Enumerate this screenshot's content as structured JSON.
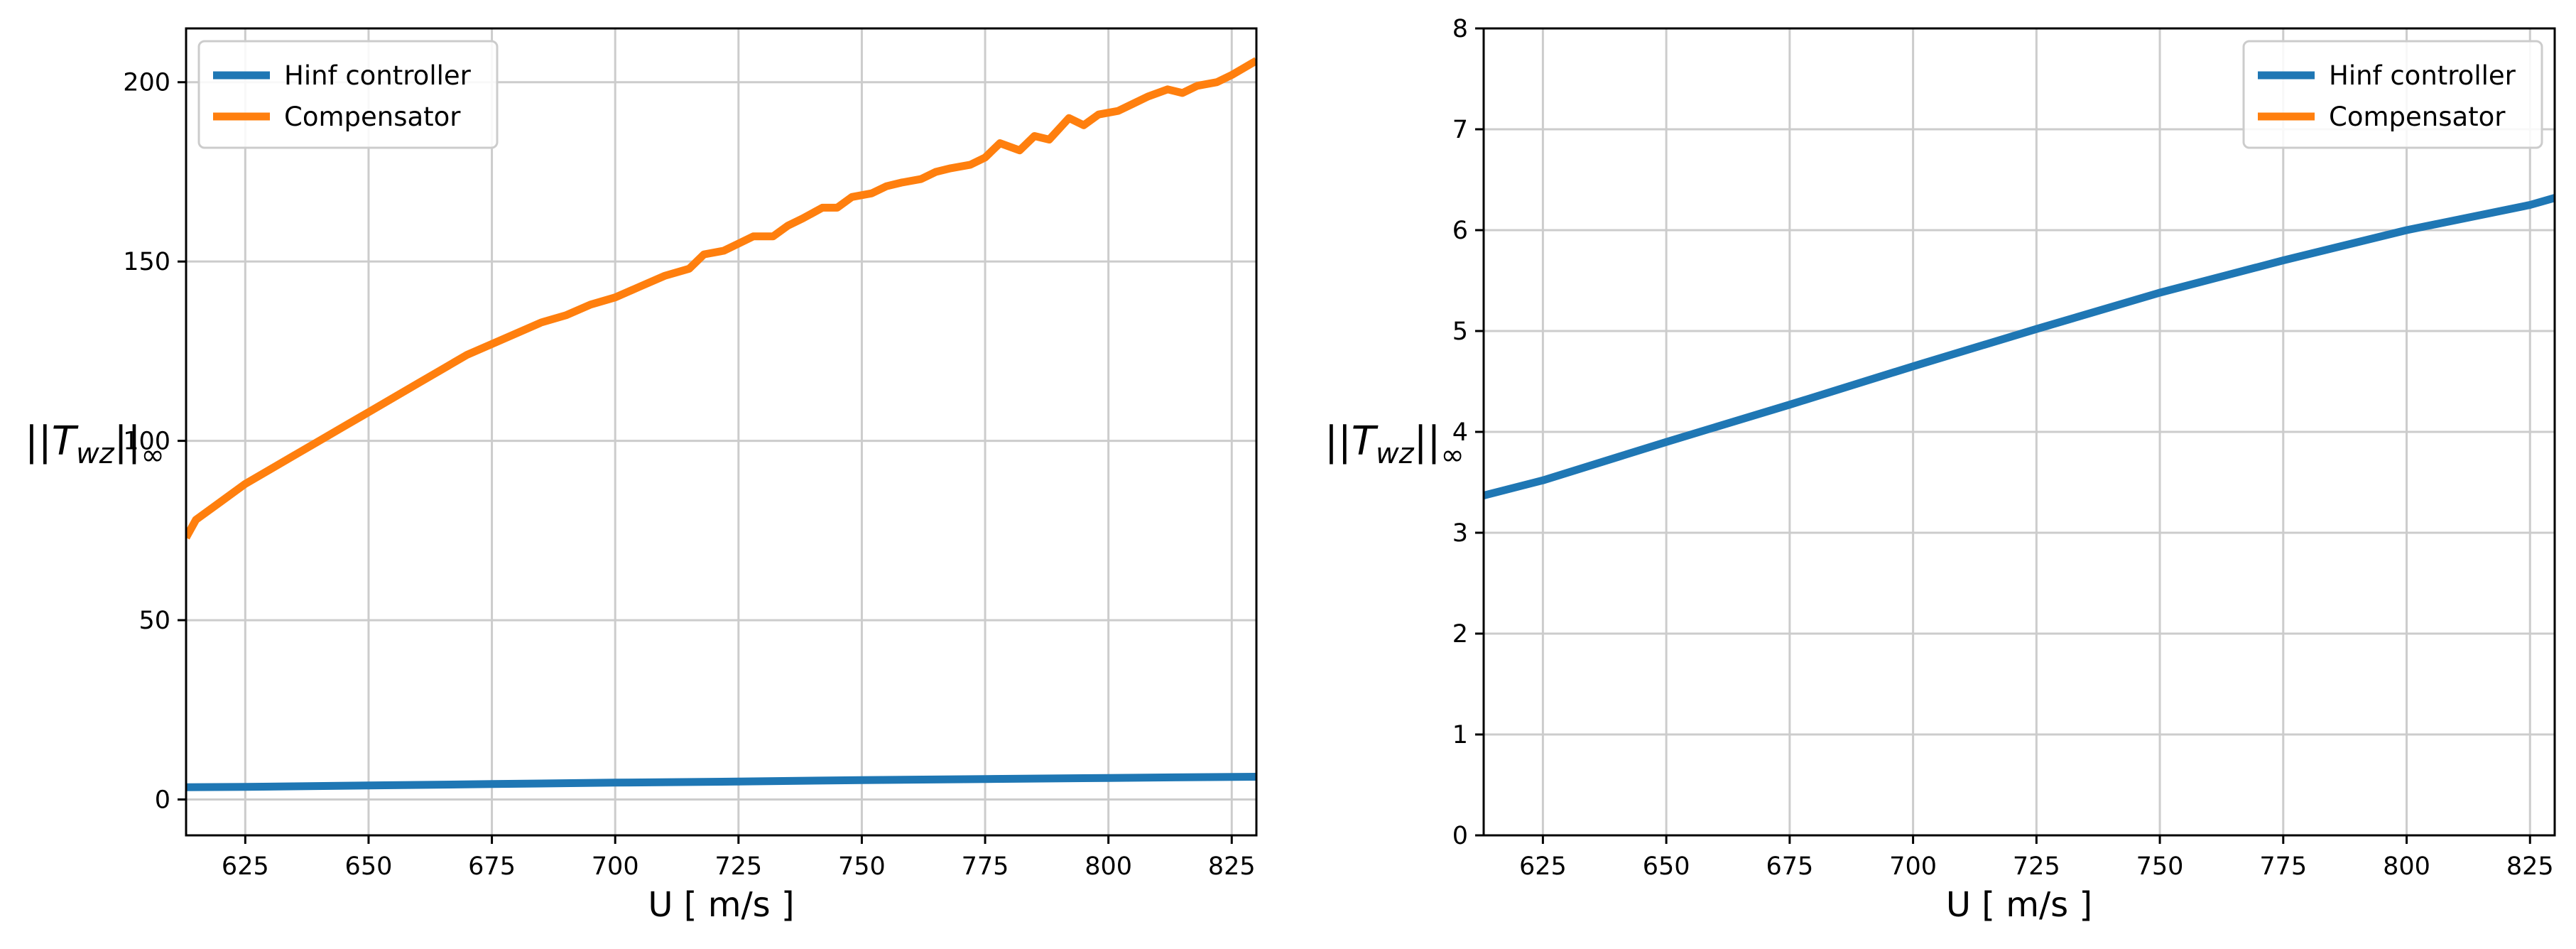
{
  "chart_data": [
    {
      "type": "line",
      "xlabel": "U [ m/s ]",
      "ylabel": {
        "base": "||T",
        "sub": "wz",
        "tail": "||∞"
      },
      "xlim": [
        613,
        830
      ],
      "ylim": [
        -10,
        215
      ],
      "xticks": [
        625,
        650,
        675,
        700,
        725,
        750,
        775,
        800,
        825
      ],
      "yticks": [
        0,
        50,
        100,
        150,
        200
      ],
      "grid": true,
      "legend_position": "top-left",
      "legend_entries": [
        "Hinf controller",
        "Compensator"
      ],
      "series": [
        {
          "name": "Hinf controller",
          "color": "#1f77b4",
          "x": [
            613,
            625,
            650,
            675,
            700,
            725,
            750,
            775,
            800,
            825,
            830
          ],
          "y": [
            3.4,
            3.5,
            3.9,
            4.3,
            4.7,
            5.0,
            5.4,
            5.7,
            6.0,
            6.3,
            6.35
          ]
        },
        {
          "name": "Compensator",
          "color": "#ff7f0e",
          "x": [
            613,
            615,
            620,
            625,
            630,
            635,
            640,
            645,
            650,
            655,
            660,
            665,
            670,
            675,
            680,
            685,
            690,
            695,
            700,
            705,
            710,
            715,
            718,
            722,
            725,
            728,
            732,
            735,
            738,
            742,
            745,
            748,
            752,
            755,
            758,
            762,
            765,
            768,
            772,
            775,
            778,
            782,
            785,
            788,
            792,
            795,
            798,
            802,
            805,
            808,
            812,
            815,
            818,
            822,
            825,
            830
          ],
          "y": [
            73,
            78,
            83,
            88,
            92,
            96,
            100,
            104,
            108,
            112,
            116,
            120,
            124,
            127,
            130,
            133,
            135,
            138,
            140,
            143,
            146,
            148,
            152,
            153,
            155,
            157,
            157,
            160,
            162,
            165,
            165,
            168,
            169,
            171,
            172,
            173,
            175,
            176,
            177,
            179,
            183,
            181,
            185,
            184,
            190,
            188,
            191,
            192,
            194,
            196,
            198,
            197,
            199,
            200,
            202,
            206
          ]
        }
      ]
    },
    {
      "type": "line",
      "xlabel": "U [ m/s ]",
      "ylabel": {
        "base": "||T",
        "sub": "wz",
        "tail": "||∞"
      },
      "xlim": [
        613,
        830
      ],
      "ylim": [
        0,
        8
      ],
      "xticks": [
        625,
        650,
        675,
        700,
        725,
        750,
        775,
        800,
        825
      ],
      "yticks": [
        0,
        1,
        2,
        3,
        4,
        5,
        6,
        7,
        8
      ],
      "grid": true,
      "legend_position": "top-right",
      "legend_entries": [
        "Hinf controller",
        "Compensator"
      ],
      "series": [
        {
          "name": "Hinf controller",
          "color": "#1f77b4",
          "x": [
            613,
            625,
            650,
            675,
            700,
            725,
            750,
            775,
            800,
            825,
            830
          ],
          "y": [
            3.37,
            3.52,
            3.9,
            4.27,
            4.65,
            5.02,
            5.38,
            5.7,
            6.0,
            6.25,
            6.32
          ]
        }
      ]
    }
  ],
  "colors": {
    "hinf": "#1f77b4",
    "compensator": "#ff7f0e",
    "grid": "#cccccc"
  }
}
